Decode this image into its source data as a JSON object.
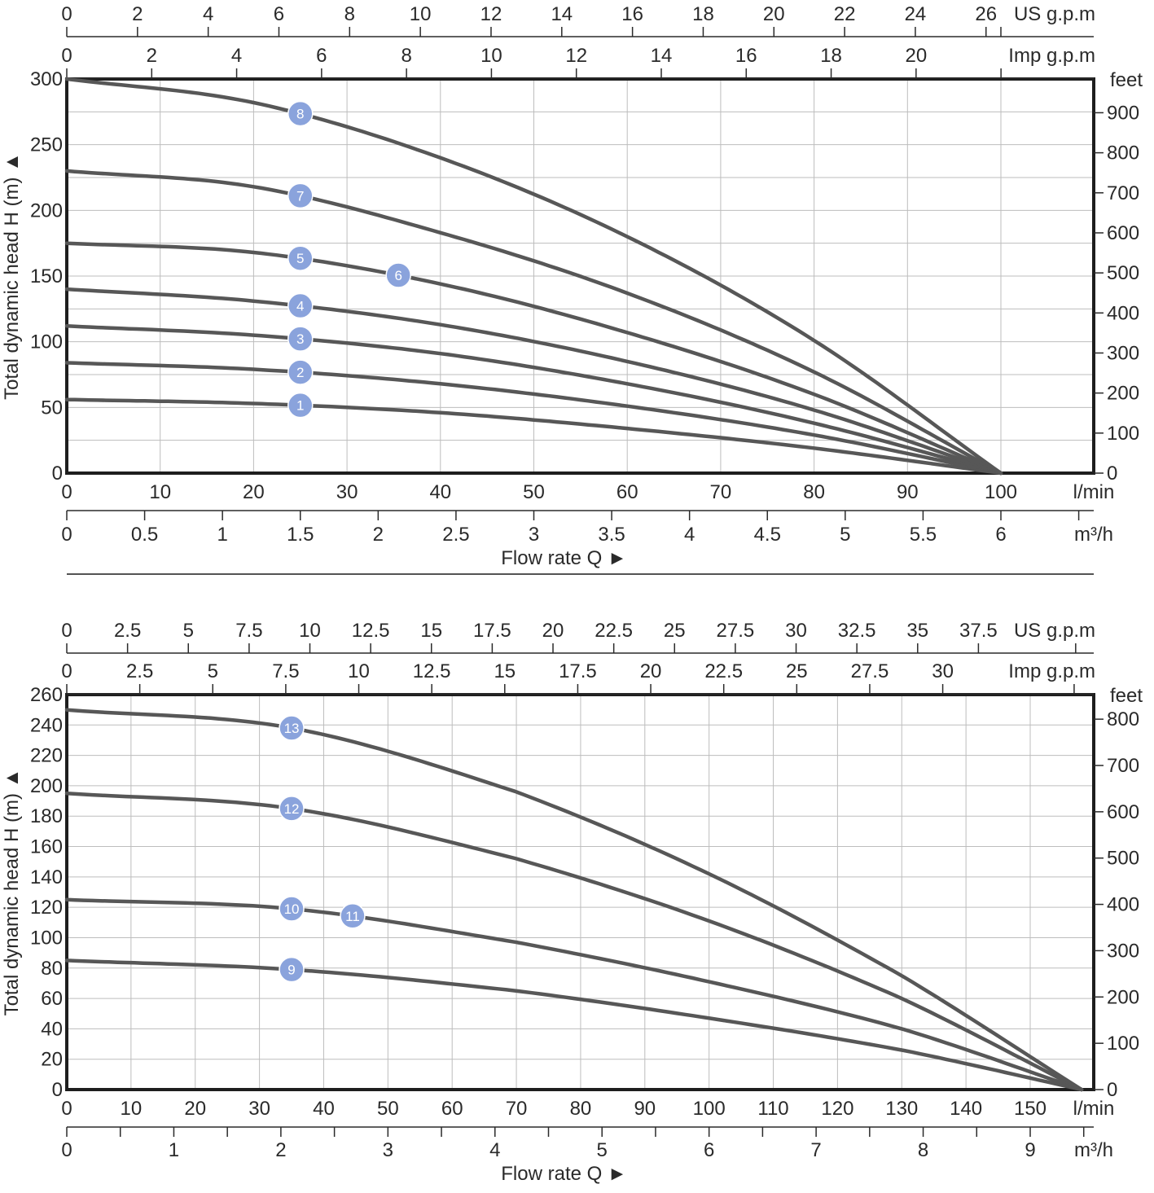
{
  "chart_data": [
    {
      "type": "line",
      "title": "",
      "xlabel": "Flow rate Q ►",
      "ylabel": "Total dynamic head H (m) ▲",
      "x_unit": "l/min",
      "xlim": [
        0,
        110
      ],
      "ylim": [
        0,
        300
      ],
      "x_ticks": [
        "0",
        "10",
        "20",
        "30",
        "40",
        "50",
        "60",
        "70",
        "80",
        "90",
        "100"
      ],
      "y_ticks": [
        "0",
        "50",
        "100",
        "150",
        "200",
        "250",
        "300"
      ],
      "x_ticks_m3h": [
        "0",
        "0.5",
        "1",
        "1.5",
        "2",
        "2.5",
        "3",
        "3.5",
        "4",
        "4.5",
        "5",
        "5.5",
        "6"
      ],
      "m3h_unit": "m³/h",
      "us_gpm_ticks": [
        "0",
        "2",
        "4",
        "6",
        "8",
        "10",
        "12",
        "14",
        "16",
        "18",
        "20",
        "22",
        "24",
        "26"
      ],
      "us_gpm_unit": "US g.p.m",
      "imp_gpm_ticks": [
        "0",
        "2",
        "4",
        "6",
        "8",
        "10",
        "12",
        "14",
        "16",
        "18",
        "20"
      ],
      "imp_gpm_unit": "Imp g.p.m",
      "feet_ticks": [
        "0",
        "100",
        "200",
        "300",
        "400",
        "500",
        "600",
        "700",
        "800",
        "900"
      ],
      "feet_unit": "feet",
      "grid": true,
      "series": [
        {
          "name": "1",
          "marker_label": "1",
          "marker_x": 25,
          "x": [
            0,
            20,
            40,
            60,
            80,
            100
          ],
          "values": [
            56,
            53,
            46,
            34,
            19,
            0
          ]
        },
        {
          "name": "2",
          "marker_label": "2",
          "marker_x": 25,
          "x": [
            0,
            20,
            40,
            60,
            80,
            100
          ],
          "values": [
            84,
            79,
            68,
            51,
            29,
            0
          ]
        },
        {
          "name": "3",
          "marker_label": "3",
          "marker_x": 25,
          "x": [
            0,
            20,
            40,
            60,
            80,
            100
          ],
          "values": [
            112,
            105,
            91,
            68,
            38,
            0
          ]
        },
        {
          "name": "4",
          "marker_label": "4",
          "marker_x": 25,
          "x": [
            0,
            20,
            40,
            60,
            80,
            100
          ],
          "values": [
            140,
            131,
            113,
            85,
            48,
            0
          ]
        },
        {
          "name": "5",
          "marker_label": "5",
          "marker_x": 25,
          "x": [
            0,
            20,
            40,
            60,
            80,
            100
          ],
          "values": [
            175,
            168,
            144,
            107,
            60,
            0
          ]
        },
        {
          "name": "6",
          "marker_label": "6",
          "marker_x": 35.5,
          "x": [
            0,
            20,
            40,
            60,
            80,
            100
          ],
          "values": [
            175,
            168,
            144,
            107,
            60,
            0
          ]
        },
        {
          "name": "7",
          "marker_label": "7",
          "marker_x": 25,
          "x": [
            0,
            20,
            40,
            60,
            80,
            100
          ],
          "values": [
            230,
            218,
            183,
            137,
            77,
            0
          ]
        },
        {
          "name": "8",
          "marker_label": "8",
          "marker_x": 25,
          "x": [
            0,
            20,
            40,
            60,
            80,
            100
          ],
          "values": [
            300,
            282,
            240,
            180,
            101,
            0
          ]
        }
      ]
    },
    {
      "type": "line",
      "title": "",
      "xlabel": "Flow rate Q ►",
      "ylabel": "Total dynamic head H (m) ▲",
      "x_unit": "l/min",
      "xlim": [
        0,
        160
      ],
      "ylim": [
        0,
        260
      ],
      "x_ticks": [
        "0",
        "10",
        "20",
        "30",
        "40",
        "50",
        "60",
        "70",
        "80",
        "90",
        "100",
        "110",
        "120",
        "130",
        "140",
        "150"
      ],
      "y_ticks": [
        "0",
        "20",
        "40",
        "60",
        "80",
        "100",
        "120",
        "140",
        "160",
        "180",
        "200",
        "220",
        "240",
        "260"
      ],
      "x_ticks_m3h": [
        "0",
        "1",
        "2",
        "3",
        "4",
        "5",
        "6",
        "7",
        "8",
        "9"
      ],
      "m3h_unit": "m³/h",
      "us_gpm_ticks": [
        "0",
        "2.5",
        "5",
        "7.5",
        "10",
        "12.5",
        "15",
        "17.5",
        "20",
        "22.5",
        "25",
        "27.5",
        "30",
        "32.5",
        "35",
        "37.5"
      ],
      "us_gpm_unit": "US g.p.m",
      "imp_gpm_ticks": [
        "0",
        "2.5",
        "5",
        "7.5",
        "10",
        "12.5",
        "15",
        "17.5",
        "20",
        "22.5",
        "25",
        "27.5",
        "30"
      ],
      "imp_gpm_unit": "Imp g.p.m",
      "feet_ticks": [
        "0",
        "100",
        "200",
        "300",
        "400",
        "500",
        "600",
        "700",
        "800"
      ],
      "feet_unit": "feet",
      "grid": true,
      "series": [
        {
          "name": "9",
          "marker_label": "9",
          "marker_x": 35,
          "x": [
            0,
            35,
            70,
            100,
            130,
            158
          ],
          "values": [
            85,
            79,
            65,
            47,
            26,
            0
          ]
        },
        {
          "name": "10",
          "marker_label": "10",
          "marker_x": 35,
          "x": [
            0,
            35,
            70,
            100,
            130,
            158
          ],
          "values": [
            125,
            119,
            97,
            71,
            40,
            0
          ]
        },
        {
          "name": "11",
          "marker_label": "11",
          "marker_x": 44.5,
          "x": [
            0,
            35,
            70,
            100,
            130,
            158
          ],
          "values": [
            125,
            119,
            97,
            71,
            40,
            0
          ]
        },
        {
          "name": "12",
          "marker_label": "12",
          "marker_x": 35,
          "x": [
            0,
            35,
            70,
            100,
            130,
            158
          ],
          "values": [
            195,
            185,
            152,
            111,
            60,
            0
          ]
        },
        {
          "name": "13",
          "marker_label": "13",
          "marker_x": 35,
          "x": [
            0,
            35,
            70,
            100,
            130,
            158
          ],
          "values": [
            250,
            238,
            196,
            142,
            75,
            0
          ]
        }
      ]
    }
  ]
}
